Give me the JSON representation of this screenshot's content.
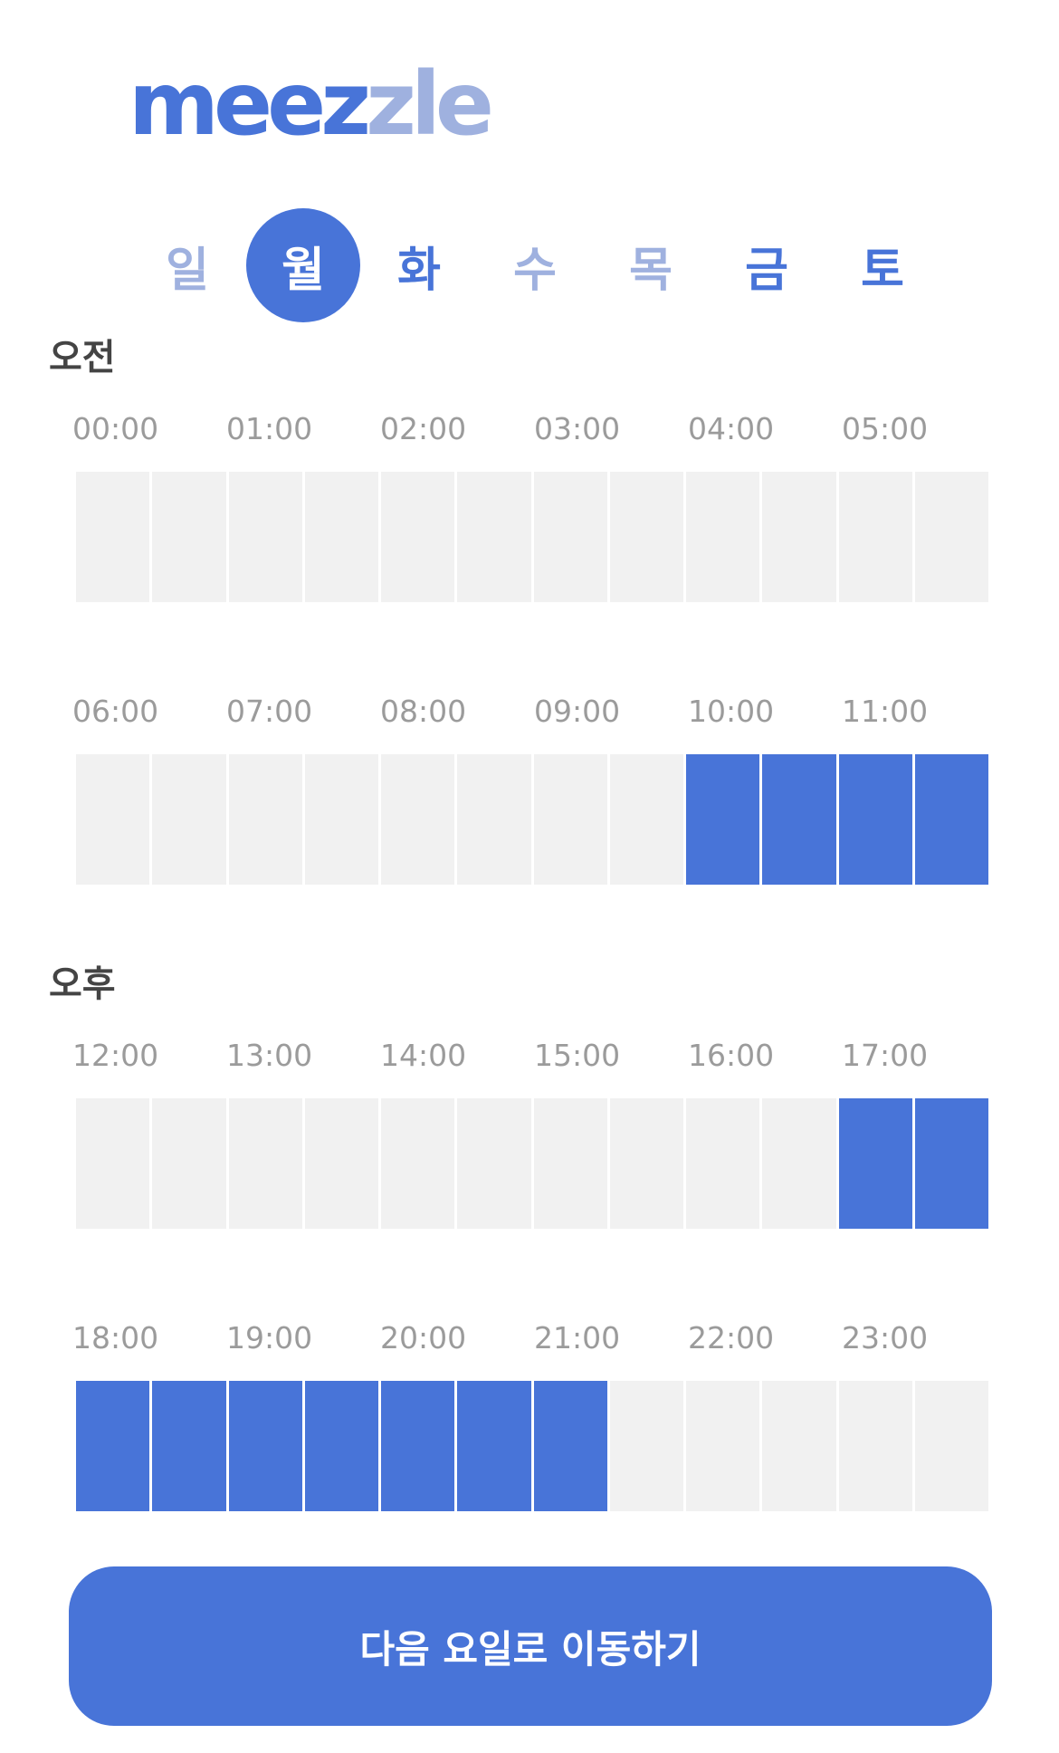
{
  "logo": {
    "part1": "meez",
    "part2": "zle"
  },
  "colors": {
    "accent": "#4874d8",
    "accent_light": "#9fb1df",
    "slot_empty": "#f1f1f1"
  },
  "days": [
    {
      "label": "일",
      "style": "light"
    },
    {
      "label": "월",
      "style": "active"
    },
    {
      "label": "화",
      "style": "dark"
    },
    {
      "label": "수",
      "style": "light"
    },
    {
      "label": "목",
      "style": "light"
    },
    {
      "label": "금",
      "style": "dark"
    },
    {
      "label": "토",
      "style": "dark"
    }
  ],
  "am": {
    "label": "오전",
    "rows": [
      {
        "ticks": [
          "00:00",
          "01:00",
          "02:00",
          "03:00",
          "04:00",
          "05:00"
        ],
        "selected": [
          false,
          false,
          false,
          false,
          false,
          false,
          false,
          false,
          false,
          false,
          false,
          false
        ]
      },
      {
        "ticks": [
          "06:00",
          "07:00",
          "08:00",
          "09:00",
          "10:00",
          "11:00"
        ],
        "selected": [
          false,
          false,
          false,
          false,
          false,
          false,
          false,
          false,
          true,
          true,
          true,
          true
        ]
      }
    ]
  },
  "pm": {
    "label": "오후",
    "rows": [
      {
        "ticks": [
          "12:00",
          "13:00",
          "14:00",
          "15:00",
          "16:00",
          "17:00"
        ],
        "selected": [
          false,
          false,
          false,
          false,
          false,
          false,
          false,
          false,
          false,
          false,
          true,
          true
        ]
      },
      {
        "ticks": [
          "18:00",
          "19:00",
          "20:00",
          "21:00",
          "22:00",
          "23:00"
        ],
        "selected": [
          true,
          true,
          true,
          true,
          true,
          true,
          true,
          false,
          false,
          false,
          false,
          false
        ]
      }
    ]
  },
  "next_button": {
    "label": "다음 요일로 이동하기"
  }
}
